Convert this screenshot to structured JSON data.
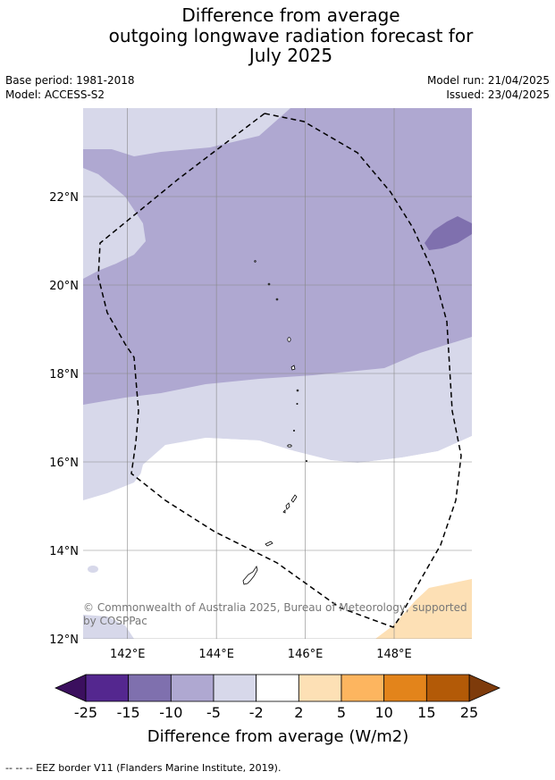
{
  "title": {
    "line1": "Difference from average",
    "line2": "outgoing longwave radiation forecast for",
    "line3": "July 2025"
  },
  "meta": {
    "base_period": "Base period: 1981-2018",
    "model": "Model: ACCESS-S2",
    "model_run": "Model run: 21/04/2025",
    "issued": "Issued: 23/04/2025"
  },
  "map": {
    "lon_range": [
      141.0,
      149.75
    ],
    "lat_range": [
      12.0,
      24.0
    ],
    "lon_ticks": [
      {
        "value": 142,
        "label": "142°E"
      },
      {
        "value": 144,
        "label": "144°E"
      },
      {
        "value": 146,
        "label": "146°E"
      },
      {
        "value": 148,
        "label": "148°E"
      }
    ],
    "lat_ticks": [
      {
        "value": 12,
        "label": "12°N"
      },
      {
        "value": 14,
        "label": "14°N"
      },
      {
        "value": 16,
        "label": "16°N"
      },
      {
        "value": 18,
        "label": "18°N"
      },
      {
        "value": 20,
        "label": "20°N"
      },
      {
        "value": 22,
        "label": "22°N"
      }
    ],
    "copyright_line1": "© Commonwealth of Australia 2025, Bureau of Meteorology, supported",
    "copyright_line2": "by COSPPac"
  },
  "colorbar": {
    "label": "Difference from average (W/m2)",
    "ticks": [
      "-25",
      "-15",
      "-10",
      "-5",
      "-2",
      "2",
      "5",
      "10",
      "15",
      "25"
    ],
    "colors": [
      "#54278f",
      "#7f70ae",
      "#afa8d1",
      "#d7d8ea",
      "#ffffff",
      "#fde0b5",
      "#fdb55f",
      "#e3841b",
      "#b35a07"
    ],
    "under_color": "#3b0f5e",
    "over_color": "#7e3b0b"
  },
  "footer": {
    "legend_text": "--  --  -- EEZ border V11 (Flanders Marine Institute, 2019)."
  }
}
